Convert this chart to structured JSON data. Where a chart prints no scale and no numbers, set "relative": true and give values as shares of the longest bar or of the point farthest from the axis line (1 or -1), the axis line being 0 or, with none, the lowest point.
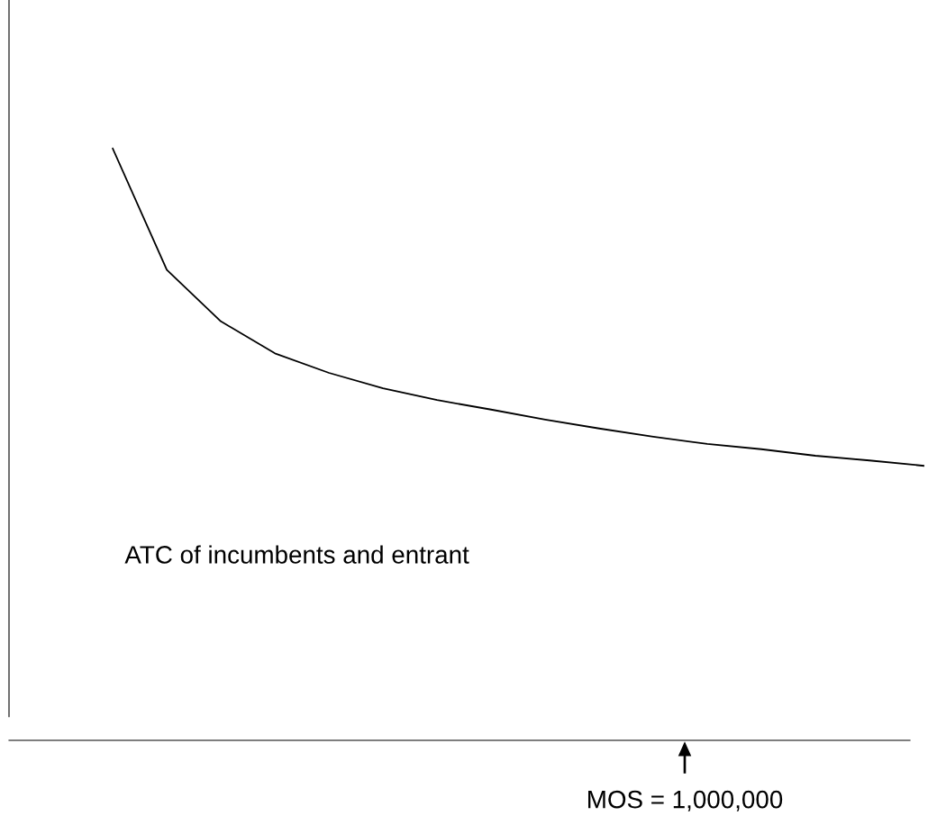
{
  "chart_data": {
    "type": "line",
    "relative": true,
    "categories": [
      null,
      null,
      null,
      null,
      null,
      null,
      null,
      null,
      null,
      null,
      null,
      null,
      null,
      null,
      null,
      null
    ],
    "series": [
      {
        "name": "ATC of incumbents and entrant",
        "color": "#000000",
        "values": [
          1.0,
          0.795,
          0.708,
          0.654,
          0.621,
          0.595,
          0.575,
          0.559,
          0.542,
          0.527,
          0.513,
          0.501,
          0.492,
          0.481,
          0.473,
          0.464
        ]
      }
    ],
    "annotations": [
      "MOS = 1,000,000"
    ],
    "marker": "none",
    "line_style": "solid"
  }
}
